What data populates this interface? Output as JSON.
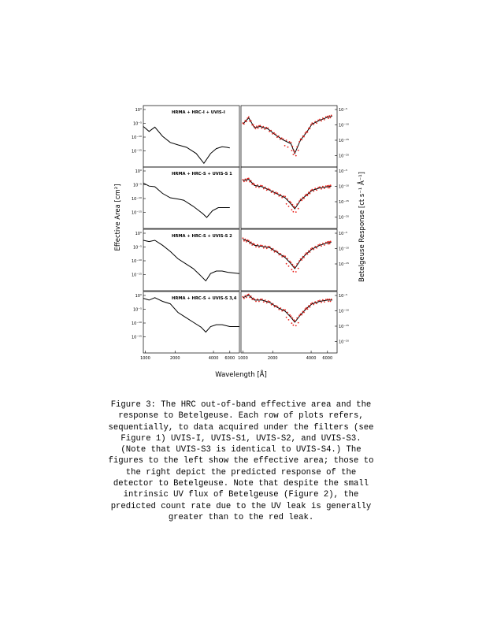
{
  "figure": {
    "xlabel": "Wavelength [Å]",
    "ylabel_left": "Effective Area [cm²]",
    "ylabel_right": "Betelgeuse Response [ct s⁻¹ Å⁻¹]",
    "colors": {
      "model": "#000000",
      "observed": "#e8201a"
    },
    "x_ticks_left": [
      "1000",
      "2000",
      "4000",
      "6000"
    ],
    "x_ticks_right": [
      "1000",
      "2000",
      "4000",
      "6000"
    ],
    "panels": [
      {
        "title": "HRMA + HRC-I + UVIS-I",
        "left_y_ticks": [
          "10⁰",
          "10⁻⁵",
          "10⁻¹⁰",
          "10⁻¹⁵"
        ],
        "right_y_ticks": [
          "10⁻⁵",
          "10⁻¹⁰",
          "10⁻¹⁵",
          "10⁻²⁰"
        ]
      },
      {
        "title": "HRMA + HRC-S + UVIS-S 1",
        "left_y_ticks": [
          "10⁰",
          "10⁻⁵",
          "10⁻¹⁰",
          "10⁻¹⁵"
        ],
        "right_y_ticks": [
          "10⁻⁵",
          "10⁻¹⁰",
          "10⁻¹⁵",
          "10⁻²⁰"
        ]
      },
      {
        "title": "HRMA + HRC-S + UVIS-S 2",
        "left_y_ticks": [
          "10⁰",
          "10⁻⁵",
          "10⁻¹⁰",
          "10⁻¹⁵"
        ],
        "right_y_ticks": [
          "10⁻⁵",
          "10⁻¹⁰",
          "10⁻¹⁵"
        ]
      },
      {
        "title": "HRMA + HRC-S + UVIS-S 3,4",
        "left_y_ticks": [
          "10⁰",
          "10⁻⁵",
          "10⁻¹⁰",
          "10⁻¹⁵"
        ],
        "right_y_ticks": [
          "10⁻⁵",
          "10⁻¹⁰",
          "10⁻¹⁵",
          "10⁻²⁰"
        ]
      }
    ]
  },
  "caption": "Figure 3:  The HRC out-of-band effective area and the\nresponse to Betelgeuse.  Each row of plots refers,\nsequentially, to data acquired under the filters (see\nFigure 1) UVIS-I, UVIS-S1, UVIS-S2, and UVIS-S3.\n(Note that UVIS-S3 is identical to UVIS-S4.)  The\nfigures to the left show the effective area; those to\nthe right depict the predicted response of the\ndetector to Betelgeuse.  Note that despite the small\nintrinsic UV flux of Betelgeuse (Figure 2), the\npredicted count rate due to the UV leak is generally\ngreater than to the red leak."
}
